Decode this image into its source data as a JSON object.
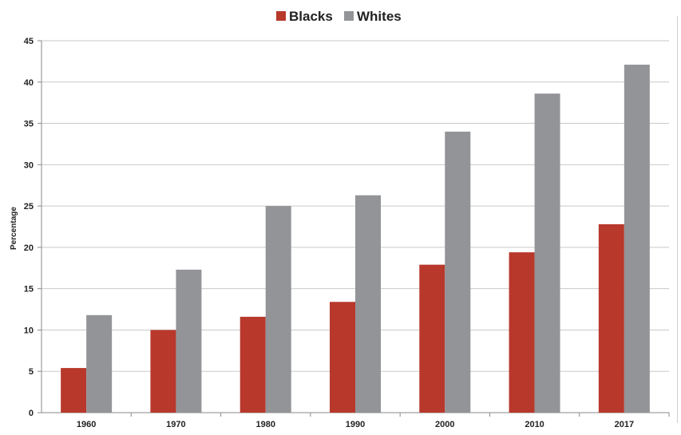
{
  "chart_data": {
    "type": "bar",
    "categories": [
      "1960",
      "1970",
      "1980",
      "1990",
      "2000",
      "2010",
      "2017"
    ],
    "series": [
      {
        "name": "Blacks",
        "color": "#b8382c",
        "values": [
          5.4,
          10.0,
          11.6,
          13.4,
          17.9,
          19.4,
          22.8
        ]
      },
      {
        "name": "Whites",
        "color": "#929497",
        "values": [
          11.8,
          17.3,
          25.0,
          26.3,
          34.0,
          38.6,
          42.1
        ]
      }
    ],
    "ylabel": "Percentage",
    "xlabel": "",
    "ylim": [
      0,
      45
    ],
    "yticks": [
      0,
      5,
      10,
      15,
      20,
      25,
      30,
      35,
      40,
      45
    ],
    "grid": true,
    "legend_position": "top-center"
  }
}
